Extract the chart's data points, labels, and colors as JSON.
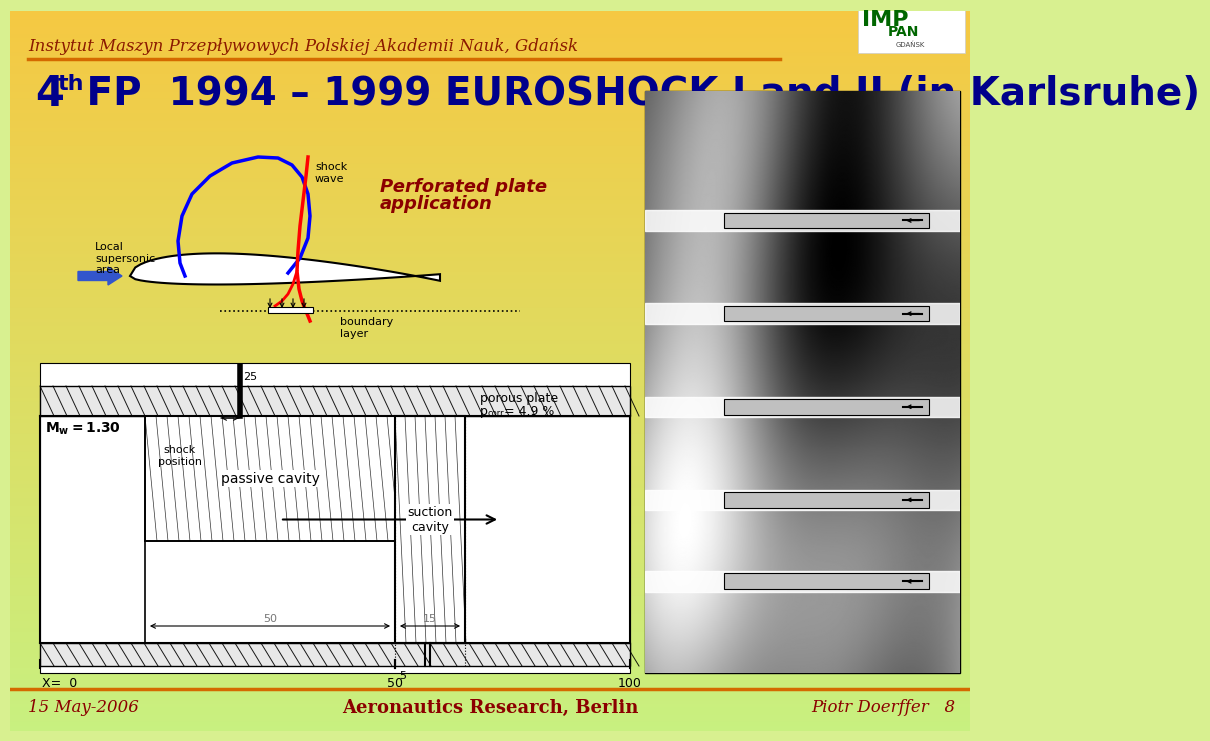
{
  "bg_gradient_top": "#f5c842",
  "bg_gradient_bottom": "#c8f080",
  "bg_color": "#d8f090",
  "title_color": "#00008b",
  "title_text": "4",
  "title_super": "th",
  "title_rest": " FP  1994 – 1999 EUROSHOCK I and II (in Karlsruhe)",
  "inst_text": "Instytut Maszyn Przepływowych Polskiej Akademii Nauk, Gdańsk",
  "inst_color": "#8b1a00",
  "orange_line_color": "#d46a00",
  "footer_left": "15 May-2006",
  "footer_center": "Aeronautics Research, Berlin",
  "footer_right": "Piotr Doerffer   8",
  "footer_color": "#8b0000",
  "perforated_text1": "Perforated plate",
  "perforated_text2": "application",
  "shock_wave_label": "shock\nwave",
  "local_supersonic_label": "Local\nsupersonic\narea",
  "boundary_layer_label": "boundary\nlayer",
  "shock_pos_label": "shock\nposition",
  "passive_cavity_label": "passive cavity",
  "suction_cavity_label": "suction\ncavity",
  "porous_line1": "porous plate",
  "porous_line2": "p",
  "porous_corr": "corr",
  "porous_val": " = 4.9 %"
}
